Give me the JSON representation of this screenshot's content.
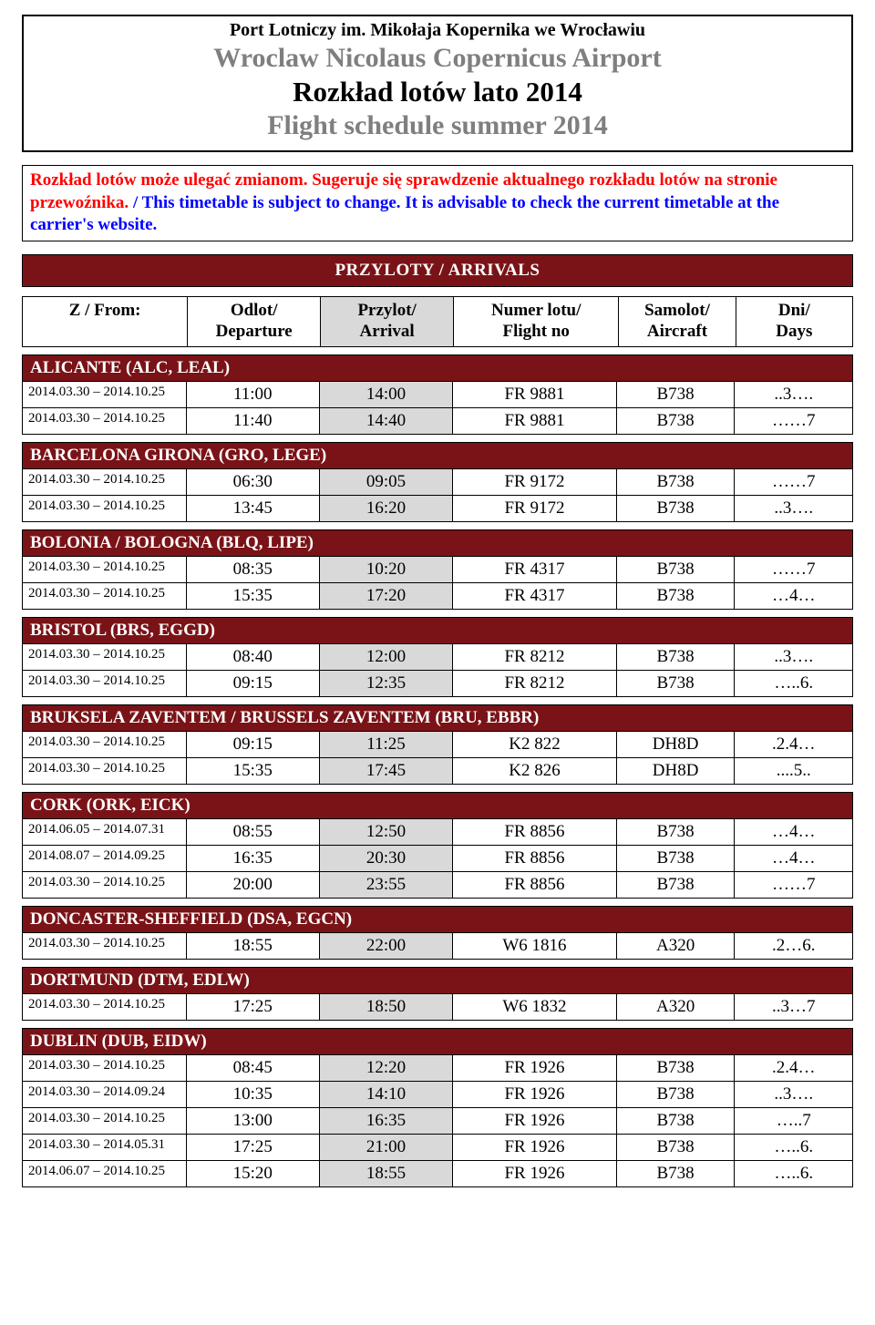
{
  "header": {
    "line1": "Port Lotniczy im. Mikołaja Kopernika we Wrocławiu",
    "line2": "Wroclaw Nicolaus Copernicus Airport",
    "line3": "Rozkład lotów lato 2014",
    "line4": "Flight schedule summer 2014"
  },
  "notice": {
    "pl": "Rozkład lotów może ulegać zmianom. Sugeruje się sprawdzenie aktualnego rozkładu lotów na stronie przewoźnika.",
    "en": "/ This timetable is subject to change. It is advisable to check the current timetable at the carrier's website."
  },
  "banner": "PRZYLOTY / ARRIVALS",
  "columns": {
    "from": "Z / From:",
    "dep_l1": "Odlot/",
    "dep_l2": "Departure",
    "arr_l1": "Przylot/",
    "arr_l2": "Arrival",
    "fno_l1": "Numer lotu/",
    "fno_l2": "Flight no",
    "ac_l1": "Samolot/",
    "ac_l2": "Aircraft",
    "days_l1": "Dni/",
    "days_l2": "Days"
  },
  "sections": [
    {
      "title": "ALICANTE (ALC, LEAL)",
      "rows": [
        {
          "dates": "2014.03.30 – 2014.10.25",
          "dep": "11:00",
          "arr": "14:00",
          "fno": "FR 9881",
          "ac": "B738",
          "days": "..3…."
        },
        {
          "dates": "2014.03.30 – 2014.10.25",
          "dep": "11:40",
          "arr": "14:40",
          "fno": "FR 9881",
          "ac": "B738",
          "days": "……7"
        }
      ]
    },
    {
      "title": "BARCELONA GIRONA (GRO, LEGE)",
      "rows": [
        {
          "dates": "2014.03.30 – 2014.10.25",
          "dep": "06:30",
          "arr": "09:05",
          "fno": "FR 9172",
          "ac": "B738",
          "days": "……7"
        },
        {
          "dates": "2014.03.30 – 2014.10.25",
          "dep": "13:45",
          "arr": "16:20",
          "fno": "FR 9172",
          "ac": "B738",
          "days": "..3…."
        }
      ]
    },
    {
      "title": "BOLONIA / BOLOGNA (BLQ, LIPE)",
      "rows": [
        {
          "dates": "2014.03.30 – 2014.10.25",
          "dep": "08:35",
          "arr": "10:20",
          "fno": "FR 4317",
          "ac": "B738",
          "days": "……7"
        },
        {
          "dates": "2014.03.30 – 2014.10.25",
          "dep": "15:35",
          "arr": "17:20",
          "fno": "FR 4317",
          "ac": "B738",
          "days": "…4…"
        }
      ]
    },
    {
      "title": "BRISTOL (BRS, EGGD)",
      "rows": [
        {
          "dates": "2014.03.30 – 2014.10.25",
          "dep": "08:40",
          "arr": "12:00",
          "fno": "FR 8212",
          "ac": "B738",
          "days": "..3…."
        },
        {
          "dates": "2014.03.30 – 2014.10.25",
          "dep": "09:15",
          "arr": "12:35",
          "fno": "FR 8212",
          "ac": "B738",
          "days": "…..6."
        }
      ]
    },
    {
      "title": "BRUKSELA ZAVENTEM / BRUSSELS ZAVENTEM (BRU, EBBR)",
      "rows": [
        {
          "dates": "2014.03.30 – 2014.10.25",
          "dep": "09:15",
          "arr": "11:25",
          "fno": "K2 822",
          "ac": "DH8D",
          "days": ".2.4…"
        },
        {
          "dates": "2014.03.30 – 2014.10.25",
          "dep": "15:35",
          "arr": "17:45",
          "fno": "K2 826",
          "ac": "DH8D",
          "days": "....5.."
        }
      ]
    },
    {
      "title": "CORK (ORK, EICK)",
      "rows": [
        {
          "dates": "2014.06.05 – 2014.07.31",
          "dep": "08:55",
          "arr": "12:50",
          "fno": "FR 8856",
          "ac": "B738",
          "days": "…4…"
        },
        {
          "dates": "2014.08.07 – 2014.09.25",
          "dep": "16:35",
          "arr": "20:30",
          "fno": "FR 8856",
          "ac": "B738",
          "days": "…4…"
        },
        {
          "dates": "2014.03.30 – 2014.10.25",
          "dep": "20:00",
          "arr": "23:55",
          "fno": "FR 8856",
          "ac": "B738",
          "days": "……7"
        }
      ]
    },
    {
      "title": "DONCASTER-SHEFFIELD (DSA, EGCN)",
      "rows": [
        {
          "dates": "2014.03.30 – 2014.10.25",
          "dep": "18:55",
          "arr": "22:00",
          "fno": "W6 1816",
          "ac": "A320",
          "days": ".2…6."
        }
      ]
    },
    {
      "title": "DORTMUND (DTM, EDLW)",
      "rows": [
        {
          "dates": "2014.03.30 – 2014.10.25",
          "dep": "17:25",
          "arr": "18:50",
          "fno": "W6 1832",
          "ac": "A320",
          "days": "..3…7"
        }
      ]
    },
    {
      "title": "DUBLIN (DUB, EIDW)",
      "rows": [
        {
          "dates": "2014.03.30 – 2014.10.25",
          "dep": "08:45",
          "arr": "12:20",
          "fno": "FR 1926",
          "ac": "B738",
          "days": ".2.4…"
        },
        {
          "dates": "2014.03.30 – 2014.09.24",
          "dep": "10:35",
          "arr": "14:10",
          "fno": "FR 1926",
          "ac": "B738",
          "days": "..3…."
        },
        {
          "dates": "2014.03.30 – 2014.10.25",
          "dep": "13:00",
          "arr": "16:35",
          "fno": "FR 1926",
          "ac": "B738",
          "days": "…..7"
        },
        {
          "dates": "2014.03.30 – 2014.05.31",
          "dep": "17:25",
          "arr": "21:00",
          "fno": "FR 1926",
          "ac": "B738",
          "days": "…..6."
        },
        {
          "dates": "2014.06.07 – 2014.10.25",
          "dep": "15:20",
          "arr": "18:55",
          "fno": "FR 1926",
          "ac": "B738",
          "days": "…..6."
        }
      ]
    }
  ]
}
